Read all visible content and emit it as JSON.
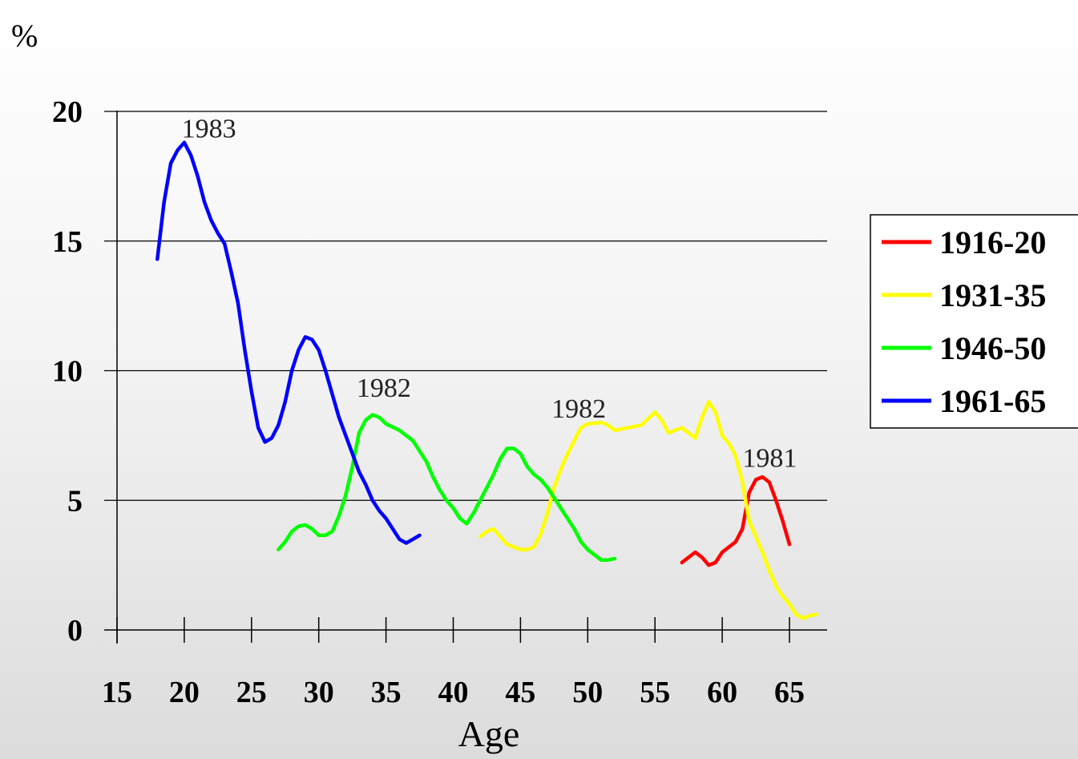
{
  "chart_data": {
    "type": "line",
    "ylabel": "%",
    "xlabel": "Age",
    "xlim": [
      15,
      68
    ],
    "ylim": [
      0,
      20
    ],
    "x_ticks": [
      15,
      20,
      25,
      30,
      35,
      40,
      45,
      50,
      55,
      60,
      65
    ],
    "y_ticks": [
      0,
      5,
      10,
      15,
      20
    ],
    "grid": "horizontal",
    "legend_position": "right",
    "series": [
      {
        "name": "1916-20",
        "color": "#ff0000",
        "points": [
          [
            57,
            2.6
          ],
          [
            57.5,
            2.8
          ],
          [
            58,
            3.0
          ],
          [
            58.5,
            2.8
          ],
          [
            59,
            2.5
          ],
          [
            59.5,
            2.6
          ],
          [
            60,
            3.0
          ],
          [
            60.5,
            3.2
          ],
          [
            61,
            3.4
          ],
          [
            61.5,
            3.9
          ],
          [
            62,
            5.3
          ],
          [
            62.5,
            5.8
          ],
          [
            63,
            5.9
          ],
          [
            63.5,
            5.7
          ],
          [
            64,
            5.0
          ],
          [
            64.5,
            4.2
          ],
          [
            65,
            3.3
          ]
        ]
      },
      {
        "name": "1931-35",
        "color": "#ffff00",
        "points": [
          [
            42,
            3.6
          ],
          [
            42.5,
            3.8
          ],
          [
            43,
            3.9
          ],
          [
            43.5,
            3.6
          ],
          [
            44,
            3.3
          ],
          [
            44.5,
            3.2
          ],
          [
            45,
            3.1
          ],
          [
            45.5,
            3.1
          ],
          [
            46,
            3.2
          ],
          [
            46.5,
            3.7
          ],
          [
            47,
            4.5
          ],
          [
            47.5,
            5.5
          ],
          [
            48,
            6.2
          ],
          [
            48.5,
            6.8
          ],
          [
            49,
            7.3
          ],
          [
            49.5,
            7.8
          ],
          [
            50,
            7.95
          ],
          [
            51,
            8.0
          ],
          [
            51.5,
            7.9
          ],
          [
            52,
            7.7
          ],
          [
            52.5,
            7.75
          ],
          [
            53,
            7.8
          ],
          [
            54,
            7.9
          ],
          [
            55,
            8.4
          ],
          [
            55.5,
            8.1
          ],
          [
            56,
            7.6
          ],
          [
            57,
            7.8
          ],
          [
            58,
            7.4
          ],
          [
            58.5,
            8.2
          ],
          [
            59,
            8.8
          ],
          [
            59.5,
            8.4
          ],
          [
            60,
            7.5
          ],
          [
            60.5,
            7.2
          ],
          [
            61,
            6.7
          ],
          [
            61.5,
            5.7
          ],
          [
            62,
            4.2
          ],
          [
            62.5,
            3.6
          ],
          [
            63,
            3.0
          ],
          [
            63.5,
            2.3
          ],
          [
            64,
            1.7
          ],
          [
            64.5,
            1.3
          ],
          [
            65,
            1.0
          ],
          [
            65.5,
            0.6
          ],
          [
            66,
            0.45
          ],
          [
            66.5,
            0.55
          ],
          [
            67,
            0.6
          ]
        ]
      },
      {
        "name": "1946-50",
        "color": "#00ff00",
        "points": [
          [
            27,
            3.1
          ],
          [
            27.5,
            3.4
          ],
          [
            28,
            3.8
          ],
          [
            28.5,
            4.0
          ],
          [
            29,
            4.05
          ],
          [
            29.5,
            3.9
          ],
          [
            30,
            3.65
          ],
          [
            30.5,
            3.65
          ],
          [
            31,
            3.8
          ],
          [
            31.5,
            4.4
          ],
          [
            32,
            5.2
          ],
          [
            32.5,
            6.3
          ],
          [
            33,
            7.6
          ],
          [
            33.5,
            8.1
          ],
          [
            34,
            8.3
          ],
          [
            34.5,
            8.2
          ],
          [
            35,
            7.95
          ],
          [
            36,
            7.7
          ],
          [
            37,
            7.3
          ],
          [
            37.5,
            6.9
          ],
          [
            38,
            6.5
          ],
          [
            38.5,
            5.9
          ],
          [
            39,
            5.4
          ],
          [
            39.5,
            5.0
          ],
          [
            40,
            4.7
          ],
          [
            40.5,
            4.3
          ],
          [
            41,
            4.1
          ],
          [
            41.5,
            4.5
          ],
          [
            42,
            5.0
          ],
          [
            42.5,
            5.5
          ],
          [
            43,
            6.0
          ],
          [
            43.5,
            6.6
          ],
          [
            44,
            7.0
          ],
          [
            44.5,
            7.0
          ],
          [
            45,
            6.8
          ],
          [
            45.5,
            6.3
          ],
          [
            46,
            6.0
          ],
          [
            46.5,
            5.8
          ],
          [
            47,
            5.5
          ],
          [
            47.5,
            5.1
          ],
          [
            48,
            4.7
          ],
          [
            48.5,
            4.3
          ],
          [
            49,
            3.9
          ],
          [
            49.5,
            3.4
          ],
          [
            50,
            3.1
          ],
          [
            50.5,
            2.9
          ],
          [
            51,
            2.7
          ],
          [
            51.5,
            2.7
          ],
          [
            52,
            2.75
          ]
        ]
      },
      {
        "name": "1961-65",
        "color": "#0000ff",
        "points": [
          [
            18,
            14.3
          ],
          [
            18.5,
            16.5
          ],
          [
            19,
            18.0
          ],
          [
            19.5,
            18.5
          ],
          [
            20,
            18.8
          ],
          [
            20.5,
            18.3
          ],
          [
            21,
            17.5
          ],
          [
            21.5,
            16.5
          ],
          [
            22,
            15.8
          ],
          [
            22.5,
            15.3
          ],
          [
            23,
            14.9
          ],
          [
            23.5,
            13.8
          ],
          [
            24,
            12.6
          ],
          [
            24.5,
            10.8
          ],
          [
            25,
            9.2
          ],
          [
            25.5,
            7.8
          ],
          [
            26,
            7.25
          ],
          [
            26.5,
            7.4
          ],
          [
            27,
            7.9
          ],
          [
            27.5,
            8.8
          ],
          [
            28,
            10.0
          ],
          [
            28.5,
            10.8
          ],
          [
            29,
            11.3
          ],
          [
            29.5,
            11.2
          ],
          [
            30,
            10.8
          ],
          [
            30.5,
            10.0
          ],
          [
            31,
            9.1
          ],
          [
            31.5,
            8.2
          ],
          [
            32,
            7.5
          ],
          [
            32.5,
            6.8
          ],
          [
            33,
            6.1
          ],
          [
            33.5,
            5.6
          ],
          [
            34,
            5.0
          ],
          [
            34.5,
            4.6
          ],
          [
            35,
            4.3
          ],
          [
            35.5,
            3.9
          ],
          [
            36,
            3.5
          ],
          [
            36.5,
            3.35
          ],
          [
            37,
            3.5
          ],
          [
            37.5,
            3.65
          ]
        ]
      }
    ],
    "annotations": [
      {
        "text": "1983",
        "x": 21,
        "y": 19.3
      },
      {
        "text": "1982",
        "x": 34,
        "y": 9.3
      },
      {
        "text": "1982",
        "x": 48.5,
        "y": 8.5
      },
      {
        "text": "1981",
        "x": 62.7,
        "y": 6.6
      }
    ]
  }
}
